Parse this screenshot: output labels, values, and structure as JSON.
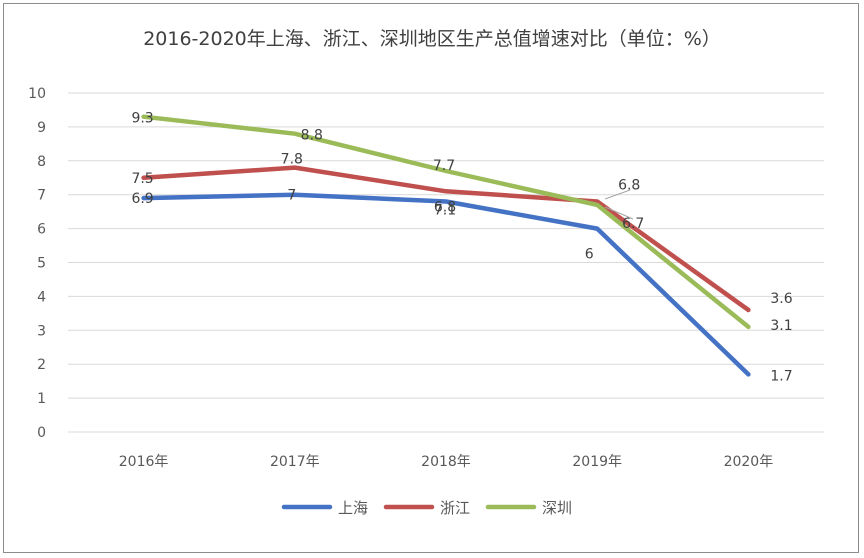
{
  "chart_data": {
    "type": "line",
    "title": "2016-2020年上海、浙江、深圳地区生产总值增速对比（单位：%）",
    "categories": [
      "2016年",
      "2017年",
      "2018年",
      "2019年",
      "2020年"
    ],
    "ylim": [
      0,
      10
    ],
    "yticks": [
      "0",
      "1",
      "2",
      "3",
      "4",
      "5",
      "6",
      "7",
      "8",
      "9",
      "10"
    ],
    "grid": true,
    "legend_position": "bottom",
    "series": [
      {
        "name": "上海",
        "color": "#4472c4",
        "values": [
          6.9,
          7,
          6.8,
          6,
          1.7
        ],
        "labels": [
          "6.9",
          "7",
          "6.8",
          "6",
          "1.7"
        ]
      },
      {
        "name": "浙江",
        "color": "#c0504d",
        "values": [
          7.5,
          7.8,
          7.1,
          6.8,
          3.6
        ],
        "labels": [
          "7.5",
          "7.8",
          "7.1",
          "6.8",
          "3.6"
        ]
      },
      {
        "name": "深圳",
        "color": "#9bbb59",
        "values": [
          9.3,
          8.8,
          7.7,
          6.7,
          3.1
        ],
        "labels": [
          "9.3",
          "8.8",
          "7.7",
          "6.7",
          "3.1"
        ]
      }
    ]
  }
}
